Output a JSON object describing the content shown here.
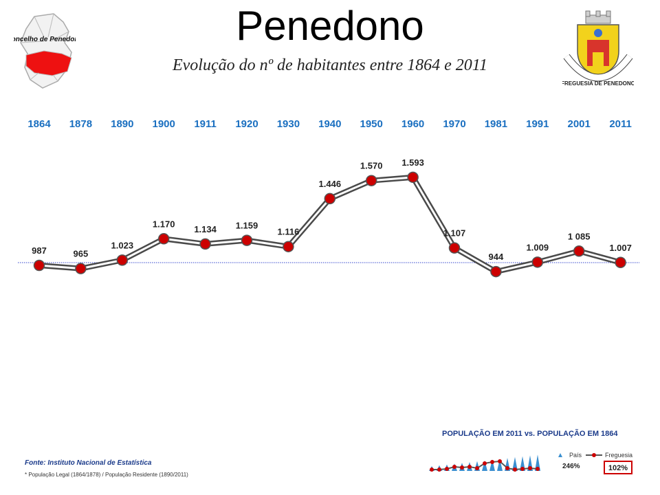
{
  "header": {
    "title": "Penedono",
    "subtitle": "Evolução do nº de habitantes entre 1864 e 2011",
    "map_label": "Concelho de Penedono",
    "crest_label": "FREGUESIA DE PENEDONO"
  },
  "chart_data": {
    "type": "line",
    "title": "Evolução do nº de habitantes entre 1864 e 2011",
    "categories": [
      "1864",
      "1878",
      "1890",
      "1900",
      "1911",
      "1920",
      "1930",
      "1940",
      "1950",
      "1960",
      "1970",
      "1981",
      "1991",
      "2001",
      "2011"
    ],
    "series": [
      {
        "values": [
          987,
          965,
          1023,
          1170,
          1134,
          1159,
          1116,
          1446,
          1570,
          1593,
          1107,
          944,
          1009,
          1085,
          1007
        ],
        "data_labels": [
          "987",
          "965",
          "1.023",
          "1.170",
          "1.134",
          "1.159",
          "1.116",
          "1.446",
          "1.570",
          "1.593",
          "1.107",
          "944",
          "1.009",
          "1 085",
          "1.007"
        ]
      }
    ],
    "reference_line": 987,
    "colors": {
      "year": "#1a6fc0",
      "marker": "#cc0000",
      "line": "#555555",
      "reference": "#3344cc"
    }
  },
  "footer": {
    "source": "Fonte: Instituto Nacional de Estatística",
    "note": "* População Legal (1864/1878) / População Residente (1890/2011)"
  },
  "inset": {
    "title": "POPULAÇÃO EM 2011 vs. POPULAÇÃO EM 1864",
    "legend_pais": "País",
    "legend_freguesia": "Freguesia",
    "pais_pct": "246%",
    "freguesia_pct": "102%",
    "colors": {
      "pais": "#3a8fd0",
      "freguesia": "#cc0000",
      "box": "#cc0000"
    }
  }
}
